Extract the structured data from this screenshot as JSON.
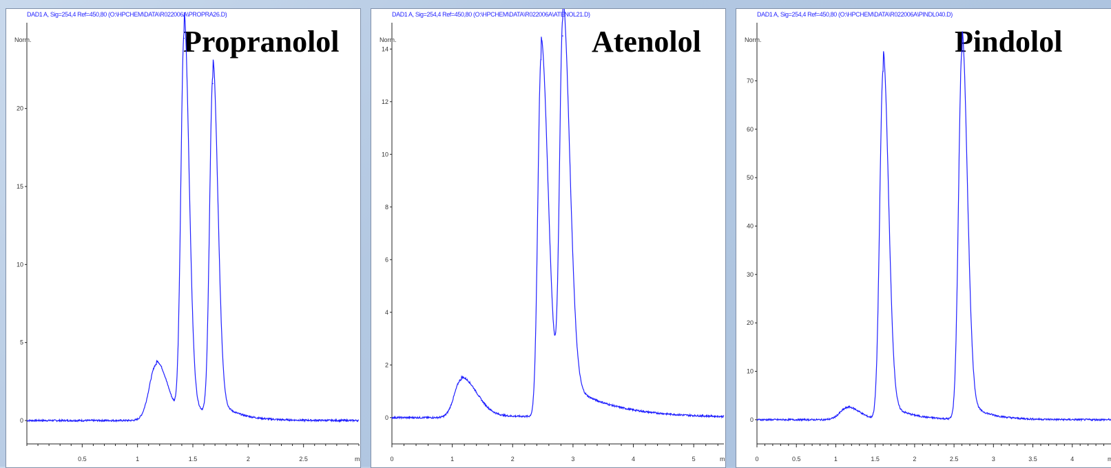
{
  "chart_data": [
    {
      "type": "line",
      "header": "DAD1 A, Sig=254,4 Ref=450,80 (O:\\HPCHEM\\DATA\\R022006A\\PROPRA26.D)",
      "title": "Propranolol",
      "ylabel": "Norm.",
      "xlabel": "min",
      "xlim": [
        0,
        3.0
      ],
      "ylim": [
        -1.5,
        25.5
      ],
      "xticks": [
        "0.5",
        "1",
        "1.5",
        "2",
        "2.5"
      ],
      "yticks": [
        "0",
        "5",
        "10",
        "15",
        "20"
      ],
      "baseline": 0,
      "peaks": [
        {
          "x": 1.17,
          "y": 3.6
        },
        {
          "x": 1.42,
          "y": 24.5
        },
        {
          "x": 1.68,
          "y": 21.6
        }
      ],
      "color": "#1f1fff"
    },
    {
      "type": "line",
      "header": "DAD1 A, Sig=254,4 Ref=450,80 (O:\\HPCHEM\\DATA\\R022006A\\ATENOL21.D)",
      "title": "Atenolol",
      "ylabel": "Norm.",
      "xlabel": "min",
      "xlim": [
        0,
        5.5
      ],
      "ylim": [
        -1.0,
        15.0
      ],
      "xticks": [
        "0",
        "1",
        "2",
        "3",
        "4",
        "5"
      ],
      "yticks": [
        "0",
        "2",
        "4",
        "6",
        "8",
        "10",
        "12",
        "14"
      ],
      "baseline": 0,
      "peaks": [
        {
          "x": 1.15,
          "y": 1.45
        },
        {
          "x": 2.47,
          "y": 13.6
        },
        {
          "x": 2.83,
          "y": 14.5
        }
      ],
      "valley": {
        "x": 2.7,
        "y": 2.8
      },
      "color": "#1f1fff"
    },
    {
      "type": "line",
      "header": "DAD1 A, Sig=254,4 Ref=450,80 (O:\\HPCHEM\\DATA\\R022006A\\PINDL040.D)",
      "title": "Pindolol",
      "ylabel": "Norm.",
      "xlabel": "min",
      "xlim": [
        0,
        4.5
      ],
      "ylim": [
        -5,
        82
      ],
      "xticks": [
        "0",
        "0.5",
        "1",
        "1.5",
        "2",
        "2.5",
        "3",
        "3.5",
        "4"
      ],
      "yticks": [
        "0",
        "10",
        "20",
        "30",
        "40",
        "50",
        "60",
        "70"
      ],
      "baseline": 0,
      "peaks": [
        {
          "x": 1.15,
          "y": 2.5
        },
        {
          "x": 1.6,
          "y": 72
        },
        {
          "x": 2.6,
          "y": 76
        }
      ],
      "color": "#1f1fff"
    }
  ]
}
